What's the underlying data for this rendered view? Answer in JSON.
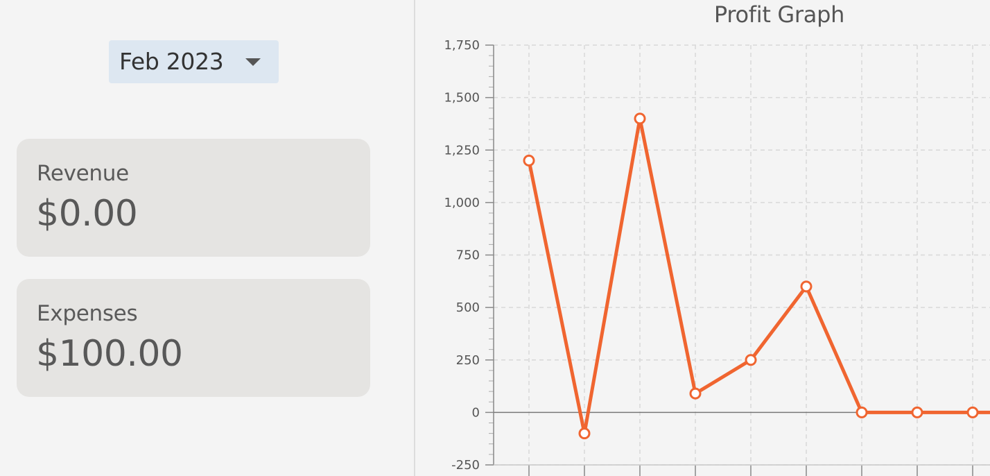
{
  "month_selector": {
    "value": "Feb 2023",
    "icon": "chevron-down-icon"
  },
  "revenue_card": {
    "label": "Revenue",
    "value": "$0.00"
  },
  "expenses_card": {
    "label": "Expenses",
    "value": "$100.00"
  },
  "colors": {
    "series": "#f06530",
    "marker_fill": "#ffffff",
    "grid": "#d8d8d8",
    "zero_line": "#777777",
    "selector_bg": "#dde7f1",
    "card_bg": "#e5e4e2"
  },
  "chart_data": {
    "type": "line",
    "title": "Profit Graph",
    "xlabel": "",
    "ylabel": "",
    "ylim": [
      -250,
      1750
    ],
    "y_ticks": [
      "1,750",
      "1,500",
      "1,250",
      "1,000",
      "750",
      "500",
      "250",
      "0",
      "-250"
    ],
    "y_tick_values": [
      1750,
      1500,
      1250,
      1000,
      750,
      500,
      250,
      0,
      -250
    ],
    "grid": true,
    "legend": "none",
    "series": [
      {
        "values": [
          1200,
          -100,
          1400,
          90,
          250,
          600,
          0,
          0,
          0
        ]
      }
    ]
  }
}
